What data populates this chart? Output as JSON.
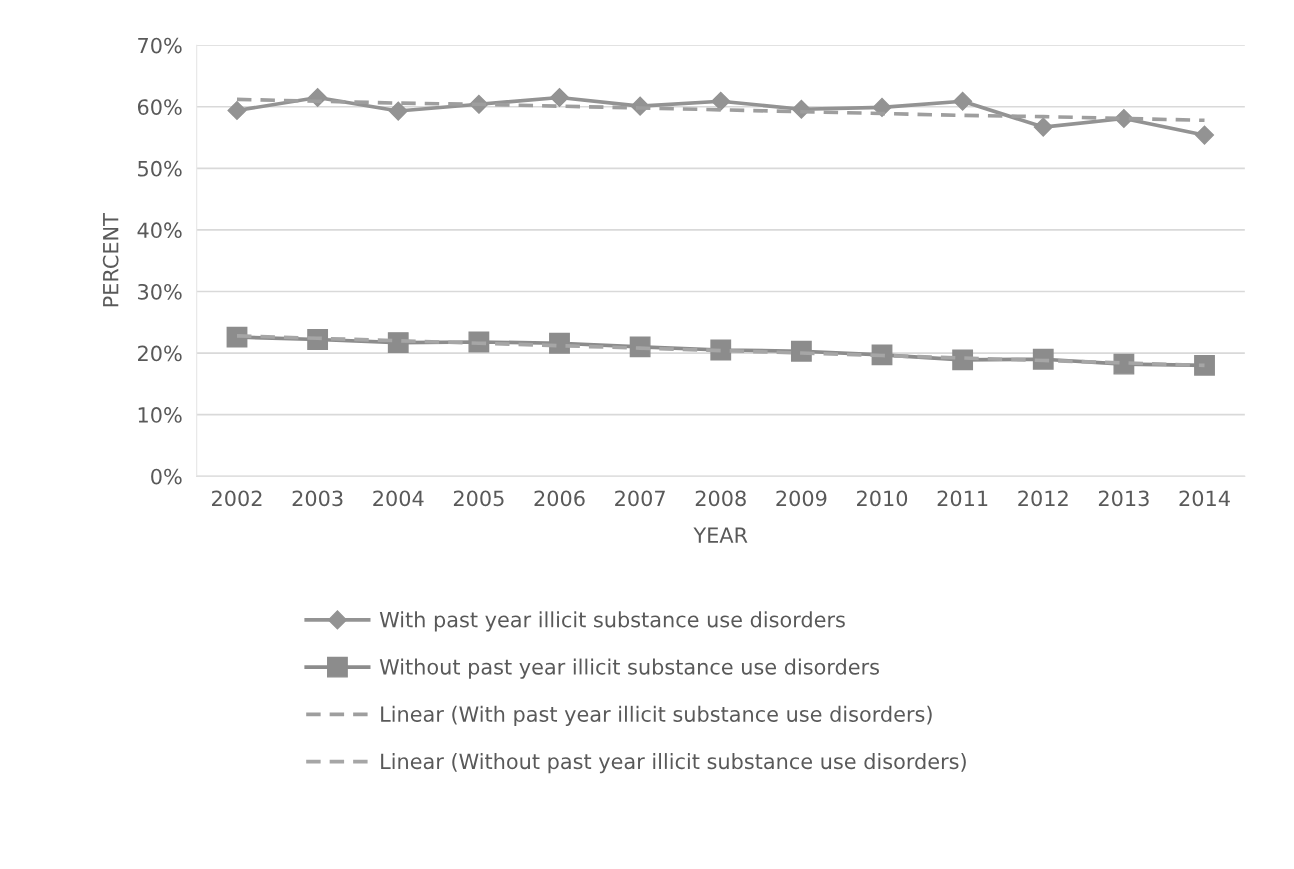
{
  "chart_data": {
    "type": "line",
    "xlabel": "YEAR",
    "ylabel": "PERCENT",
    "categories": [
      "2002",
      "2003",
      "2004",
      "2005",
      "2006",
      "2007",
      "2008",
      "2009",
      "2010",
      "2011",
      "2012",
      "2013",
      "2014"
    ],
    "series": [
      {
        "name": "With past year illicit substance use disorders",
        "color": "#939393",
        "marker": "diamond",
        "line_style": "solid",
        "values": [
          59.4,
          61.5,
          59.3,
          60.4,
          61.5,
          60.1,
          60.9,
          59.6,
          59.9,
          60.9,
          56.7,
          58.1,
          55.4
        ]
      },
      {
        "name": "Without past year illicit substance use disorders",
        "color": "#8c8c8c",
        "marker": "square",
        "line_style": "solid",
        "values": [
          22.6,
          22.2,
          21.7,
          21.8,
          21.6,
          21.0,
          20.5,
          20.3,
          19.7,
          18.9,
          19.0,
          18.2,
          18.0
        ]
      },
      {
        "name": "Linear (With past year illicit substance use disorders)",
        "color": "#9e9e9e",
        "line_style": "dashed",
        "values": [
          61.2,
          60.9,
          60.6,
          60.4,
          60.1,
          59.8,
          59.5,
          59.2,
          58.9,
          58.6,
          58.4,
          58.1,
          57.8
        ]
      },
      {
        "name": "Linear (Without past year illicit substance use disorders)",
        "color": "#a6a6a6",
        "line_style": "dashed",
        "values": [
          22.8,
          22.4,
          22.0,
          21.6,
          21.2,
          20.8,
          20.4,
          20.0,
          19.6,
          19.2,
          18.8,
          18.4,
          18.0
        ]
      }
    ],
    "ylim": [
      0,
      70
    ],
    "yticks": [
      {
        "value": 0,
        "label": "0%"
      },
      {
        "value": 10,
        "label": "10%"
      },
      {
        "value": 20,
        "label": "20%"
      },
      {
        "value": 30,
        "label": "30%"
      },
      {
        "value": 40,
        "label": "40%"
      },
      {
        "value": 50,
        "label": "50%"
      },
      {
        "value": 60,
        "label": "60%"
      },
      {
        "value": 70,
        "label": "70%"
      }
    ],
    "grid": "y",
    "legend": "bottom"
  }
}
